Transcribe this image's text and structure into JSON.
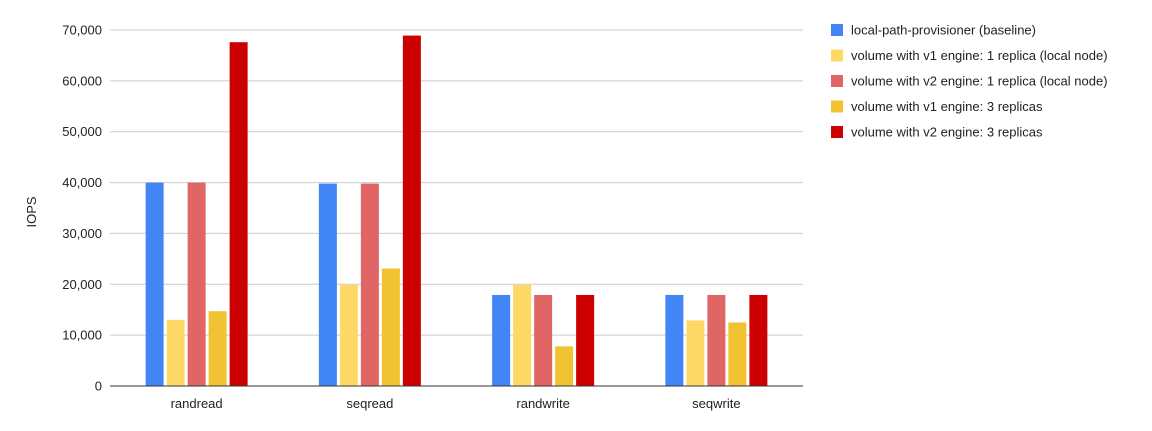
{
  "chart_data": {
    "type": "bar",
    "title": "",
    "xlabel": "",
    "ylabel": "IOPS",
    "ylim": [
      0,
      70000
    ],
    "yticks": [
      0,
      10000,
      20000,
      30000,
      40000,
      50000,
      60000,
      70000
    ],
    "ytick_labels": [
      "0",
      "10,000",
      "20,000",
      "30,000",
      "40,000",
      "50,000",
      "60,000",
      "70,000"
    ],
    "grid": true,
    "legend_position": "right",
    "categories": [
      "randread",
      "seqread",
      "randwrite",
      "seqwrite"
    ],
    "series": [
      {
        "name": "local-path-provisioner (baseline)",
        "color": "#4285f4",
        "values": [
          40000,
          39800,
          17900,
          17900
        ]
      },
      {
        "name": "volume with v1 engine: 1 replica (local node)",
        "color": "#ffd966",
        "values": [
          13000,
          19900,
          19900,
          12900
        ]
      },
      {
        "name": "volume with v2 engine: 1 replica (local node)",
        "color": "#e06666",
        "values": [
          40000,
          39800,
          17900,
          17900
        ]
      },
      {
        "name": "volume with v1 engine: 3 replicas",
        "color": "#f1c232",
        "values": [
          14700,
          23100,
          7800,
          12500
        ]
      },
      {
        "name": "volume with v2 engine: 3 replicas",
        "color": "#cc0000",
        "values": [
          67600,
          68900,
          17900,
          17900
        ]
      }
    ]
  }
}
